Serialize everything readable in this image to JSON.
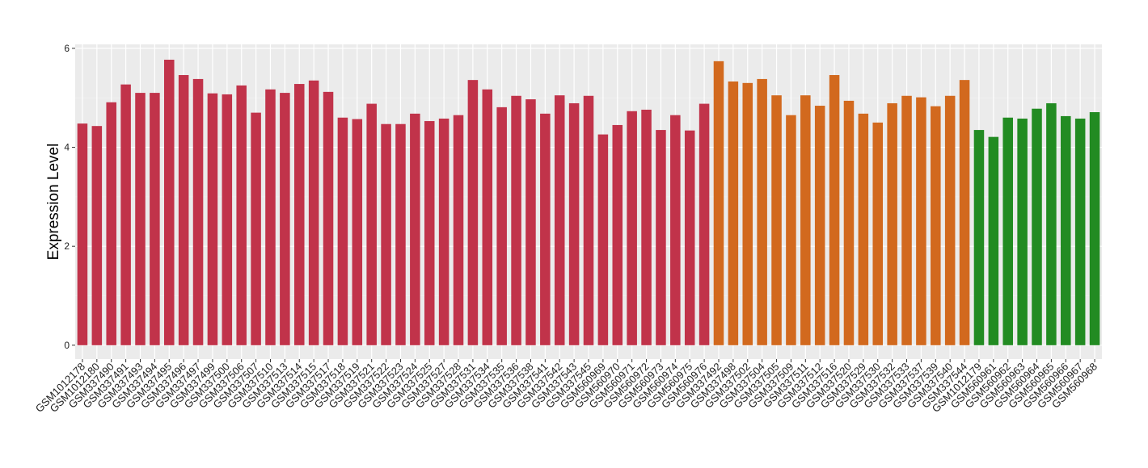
{
  "chart_data": {
    "type": "bar",
    "y_label": "Expression Level",
    "categories": [
      "GSM1012178",
      "GSM1012180",
      "GSM337490",
      "GSM337491",
      "GSM337493",
      "GSM337494",
      "GSM337495",
      "GSM337496",
      "GSM337497",
      "GSM337499",
      "GSM337500",
      "GSM337506",
      "GSM337507",
      "GSM337510",
      "GSM337513",
      "GSM337514",
      "GSM337515",
      "GSM337517",
      "GSM337518",
      "GSM337519",
      "GSM337521",
      "GSM337522",
      "GSM337523",
      "GSM337524",
      "GSM337525",
      "GSM337527",
      "GSM337528",
      "GSM337531",
      "GSM337534",
      "GSM337535",
      "GSM337536",
      "GSM337538",
      "GSM337541",
      "GSM337542",
      "GSM337543",
      "GSM337545",
      "GSM560969",
      "GSM560970",
      "GSM560971",
      "GSM560972",
      "GSM560973",
      "GSM560974",
      "GSM560975",
      "GSM560976",
      "GSM337492",
      "GSM337498",
      "GSM337502",
      "GSM337504",
      "GSM337505",
      "GSM337509",
      "GSM337511",
      "GSM337512",
      "GSM337516",
      "GSM337520",
      "GSM337529",
      "GSM337530",
      "GSM337532",
      "GSM337533",
      "GSM337537",
      "GSM337539",
      "GSM337540",
      "GSM337544",
      "GSM1012179",
      "GSM560961",
      "GSM560962",
      "GSM560963",
      "GSM560964",
      "GSM560965",
      "GSM560966",
      "GSM560967",
      "GSM560968"
    ],
    "values": [
      4.48,
      4.43,
      4.91,
      5.27,
      5.1,
      5.1,
      5.77,
      5.46,
      5.38,
      5.09,
      5.07,
      5.25,
      4.7,
      5.17,
      5.1,
      5.28,
      5.35,
      5.12,
      4.6,
      4.57,
      4.88,
      4.47,
      4.47,
      4.68,
      4.53,
      4.58,
      4.65,
      5.36,
      5.17,
      4.81,
      5.04,
      4.97,
      4.68,
      5.05,
      4.89,
      5.04,
      4.26,
      4.45,
      4.73,
      4.76,
      4.35,
      4.65,
      4.34,
      4.88,
      5.74,
      5.33,
      5.3,
      5.38,
      5.05,
      4.65,
      5.05,
      4.84,
      5.46,
      4.94,
      4.68,
      4.5,
      4.89,
      5.04,
      5.01,
      4.83,
      5.04,
      5.36,
      4.35,
      4.21,
      4.6,
      4.58,
      4.78,
      4.89,
      4.63,
      4.58,
      4.71
    ],
    "colors": [
      "#c1334a",
      "#c1334a",
      "#c1334a",
      "#c1334a",
      "#c1334a",
      "#c1334a",
      "#c1334a",
      "#c1334a",
      "#c1334a",
      "#c1334a",
      "#c1334a",
      "#c1334a",
      "#c1334a",
      "#c1334a",
      "#c1334a",
      "#c1334a",
      "#c1334a",
      "#c1334a",
      "#c1334a",
      "#c1334a",
      "#c1334a",
      "#c1334a",
      "#c1334a",
      "#c1334a",
      "#c1334a",
      "#c1334a",
      "#c1334a",
      "#c1334a",
      "#c1334a",
      "#c1334a",
      "#c1334a",
      "#c1334a",
      "#c1334a",
      "#c1334a",
      "#c1334a",
      "#c1334a",
      "#c1334a",
      "#c1334a",
      "#c1334a",
      "#c1334a",
      "#c1334a",
      "#c1334a",
      "#c1334a",
      "#c1334a",
      "#d2691e",
      "#d2691e",
      "#d2691e",
      "#d2691e",
      "#d2691e",
      "#d2691e",
      "#d2691e",
      "#d2691e",
      "#d2691e",
      "#d2691e",
      "#d2691e",
      "#d2691e",
      "#d2691e",
      "#d2691e",
      "#d2691e",
      "#d2691e",
      "#d2691e",
      "#d2691e",
      "#228b22",
      "#228b22",
      "#228b22",
      "#228b22",
      "#228b22",
      "#228b22",
      "#228b22",
      "#228b22",
      "#228b22"
    ],
    "ylim": [
      -0.28,
      6.08
    ],
    "yticks": [
      0,
      2,
      4,
      6
    ],
    "grid": true
  }
}
